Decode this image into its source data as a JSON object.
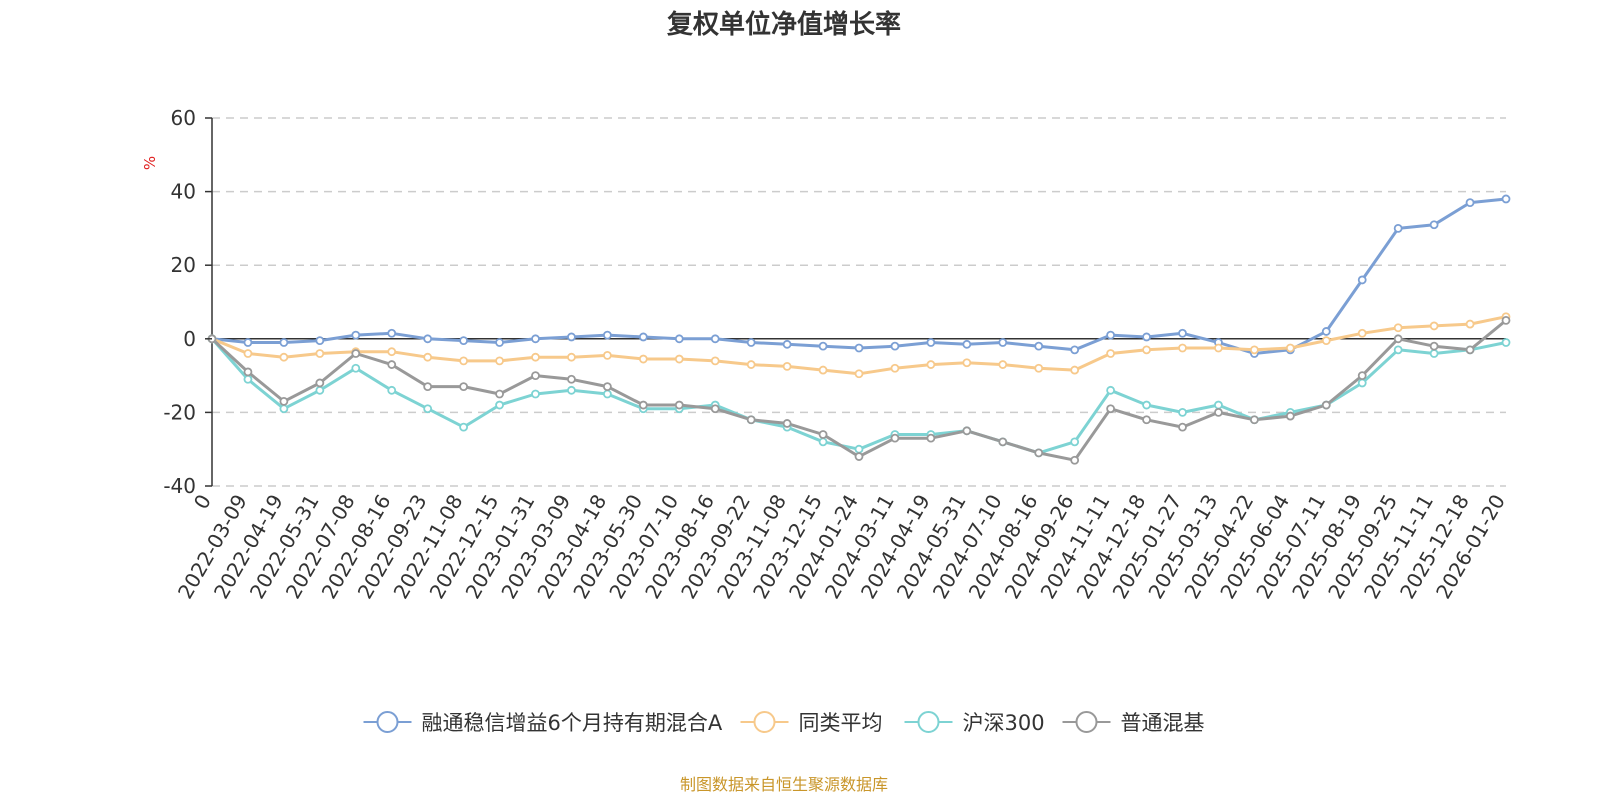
{
  "chart_data": {
    "type": "line",
    "title": "复权单位净值增长率",
    "ylabel": "%",
    "ylim": [
      -40,
      60
    ],
    "yticks": [
      60,
      40,
      20,
      0,
      -20,
      -40
    ],
    "x_tick_labels": [
      "0",
      "2022-03-09",
      "2022-04-19",
      "2022-05-31",
      "2022-07-08",
      "2022-08-16",
      "2022-09-23",
      "2022-11-08",
      "2022-12-15",
      "2023-01-31",
      "2023-03-09",
      "2023-04-18",
      "2023-05-30",
      "2023-07-10",
      "2023-08-16",
      "2023-09-22",
      "2023-11-08",
      "2023-12-15",
      "2024-01-24",
      "2024-03-11",
      "2024-04-19",
      "2024-05-31",
      "2024-07-10",
      "2024-08-16",
      "2024-09-26",
      "2024-11-11",
      "2024-12-18",
      "2025-01-27",
      "2025-03-13",
      "2025-04-22",
      "2025-06-04",
      "2025-07-11",
      "2025-08-19",
      "2025-09-25",
      "2025-11-11",
      "2025-12-18",
      "2026-01-20"
    ],
    "grid": true,
    "legend_position": "bottom",
    "series": [
      {
        "name": "融通稳信增益6个月持有期混合A",
        "color": "#7b9fd4",
        "values": [
          0,
          -1,
          -1,
          -0.5,
          1,
          1.5,
          0,
          -0.5,
          -1,
          0,
          0.5,
          1,
          0.5,
          0,
          0,
          -1,
          -1.5,
          -2,
          -2.5,
          -2,
          -1,
          -1.5,
          -1,
          -2,
          -3,
          1,
          0.5,
          1.5,
          -1,
          -4,
          -3,
          2,
          16,
          30,
          31,
          37,
          38
        ]
      },
      {
        "name": "同类平均",
        "color": "#f7c98b",
        "values": [
          0,
          -4,
          -5,
          -4,
          -3.5,
          -3.5,
          -5,
          -6,
          -6,
          -5,
          -5,
          -4.5,
          -5.5,
          -5.5,
          -6,
          -7,
          -7.5,
          -8.5,
          -9.5,
          -8,
          -7,
          -6.5,
          -7,
          -8,
          -8.5,
          -4,
          -3,
          -2.5,
          -2.5,
          -3,
          -2.5,
          -0.5,
          1.5,
          3,
          3.5,
          4,
          6
        ]
      },
      {
        "name": "沪深300",
        "color": "#7dd3d3",
        "values": [
          0,
          -11,
          -19,
          -14,
          -8,
          -14,
          -19,
          -24,
          -18,
          -15,
          -14,
          -15,
          -19,
          -19,
          -18,
          -22,
          -24,
          -28,
          -30,
          -26,
          -26,
          -25,
          -28,
          -31,
          -28,
          -14,
          -18,
          -20,
          -18,
          -22,
          -20,
          -18,
          -12,
          -3,
          -4,
          -3,
          -1
        ]
      },
      {
        "name": "普通混基",
        "color": "#999999",
        "values": [
          0,
          -9,
          -17,
          -12,
          -4,
          -7,
          -13,
          -13,
          -15,
          -10,
          -11,
          -13,
          -18,
          -18,
          -19,
          -22,
          -23,
          -26,
          -32,
          -27,
          -27,
          -25,
          -28,
          -31,
          -33,
          -19,
          -22,
          -24,
          -20,
          -22,
          -21,
          -18,
          -10,
          0,
          -2,
          -3,
          5
        ]
      }
    ]
  },
  "footer": {
    "source": "制图数据来自恒生聚源数据库"
  }
}
